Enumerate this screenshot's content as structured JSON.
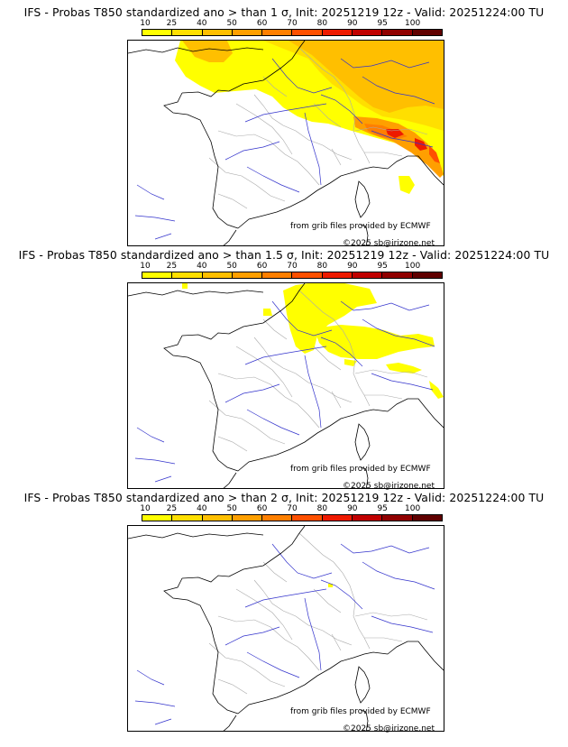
{
  "colorbar": {
    "labels": [
      "10",
      "25",
      "40",
      "50",
      "60",
      "70",
      "80",
      "90",
      "95",
      "100"
    ],
    "colors": [
      "#ffff00",
      "#ffdf00",
      "#ffbf00",
      "#ff9f00",
      "#ff7f00",
      "#ff5000",
      "#ee1a00",
      "#c00000",
      "#900000",
      "#600000"
    ]
  },
  "credits": {
    "source": "from grib files provided by ECMWF",
    "copyright": "©2025 sb@irizone.net"
  },
  "panels": [
    {
      "title": "IFS - Probas T850  standardized ano > than 1 σ, Init: 20251219 12z - Valid: 20251224:00 TU"
    },
    {
      "title": "IFS - Probas T850  standardized ano > than 1.5 σ, Init: 20251219 12z - Valid: 20251224:00 TU"
    },
    {
      "title": "IFS - Probas T850  standardized ano > than 2 σ, Init: 20251219 12z - Valid: 20251224:00 TU"
    }
  ],
  "colors": {
    "coast": "#000000",
    "rivers": "#3333cc",
    "borders": "#aaaaaa"
  }
}
